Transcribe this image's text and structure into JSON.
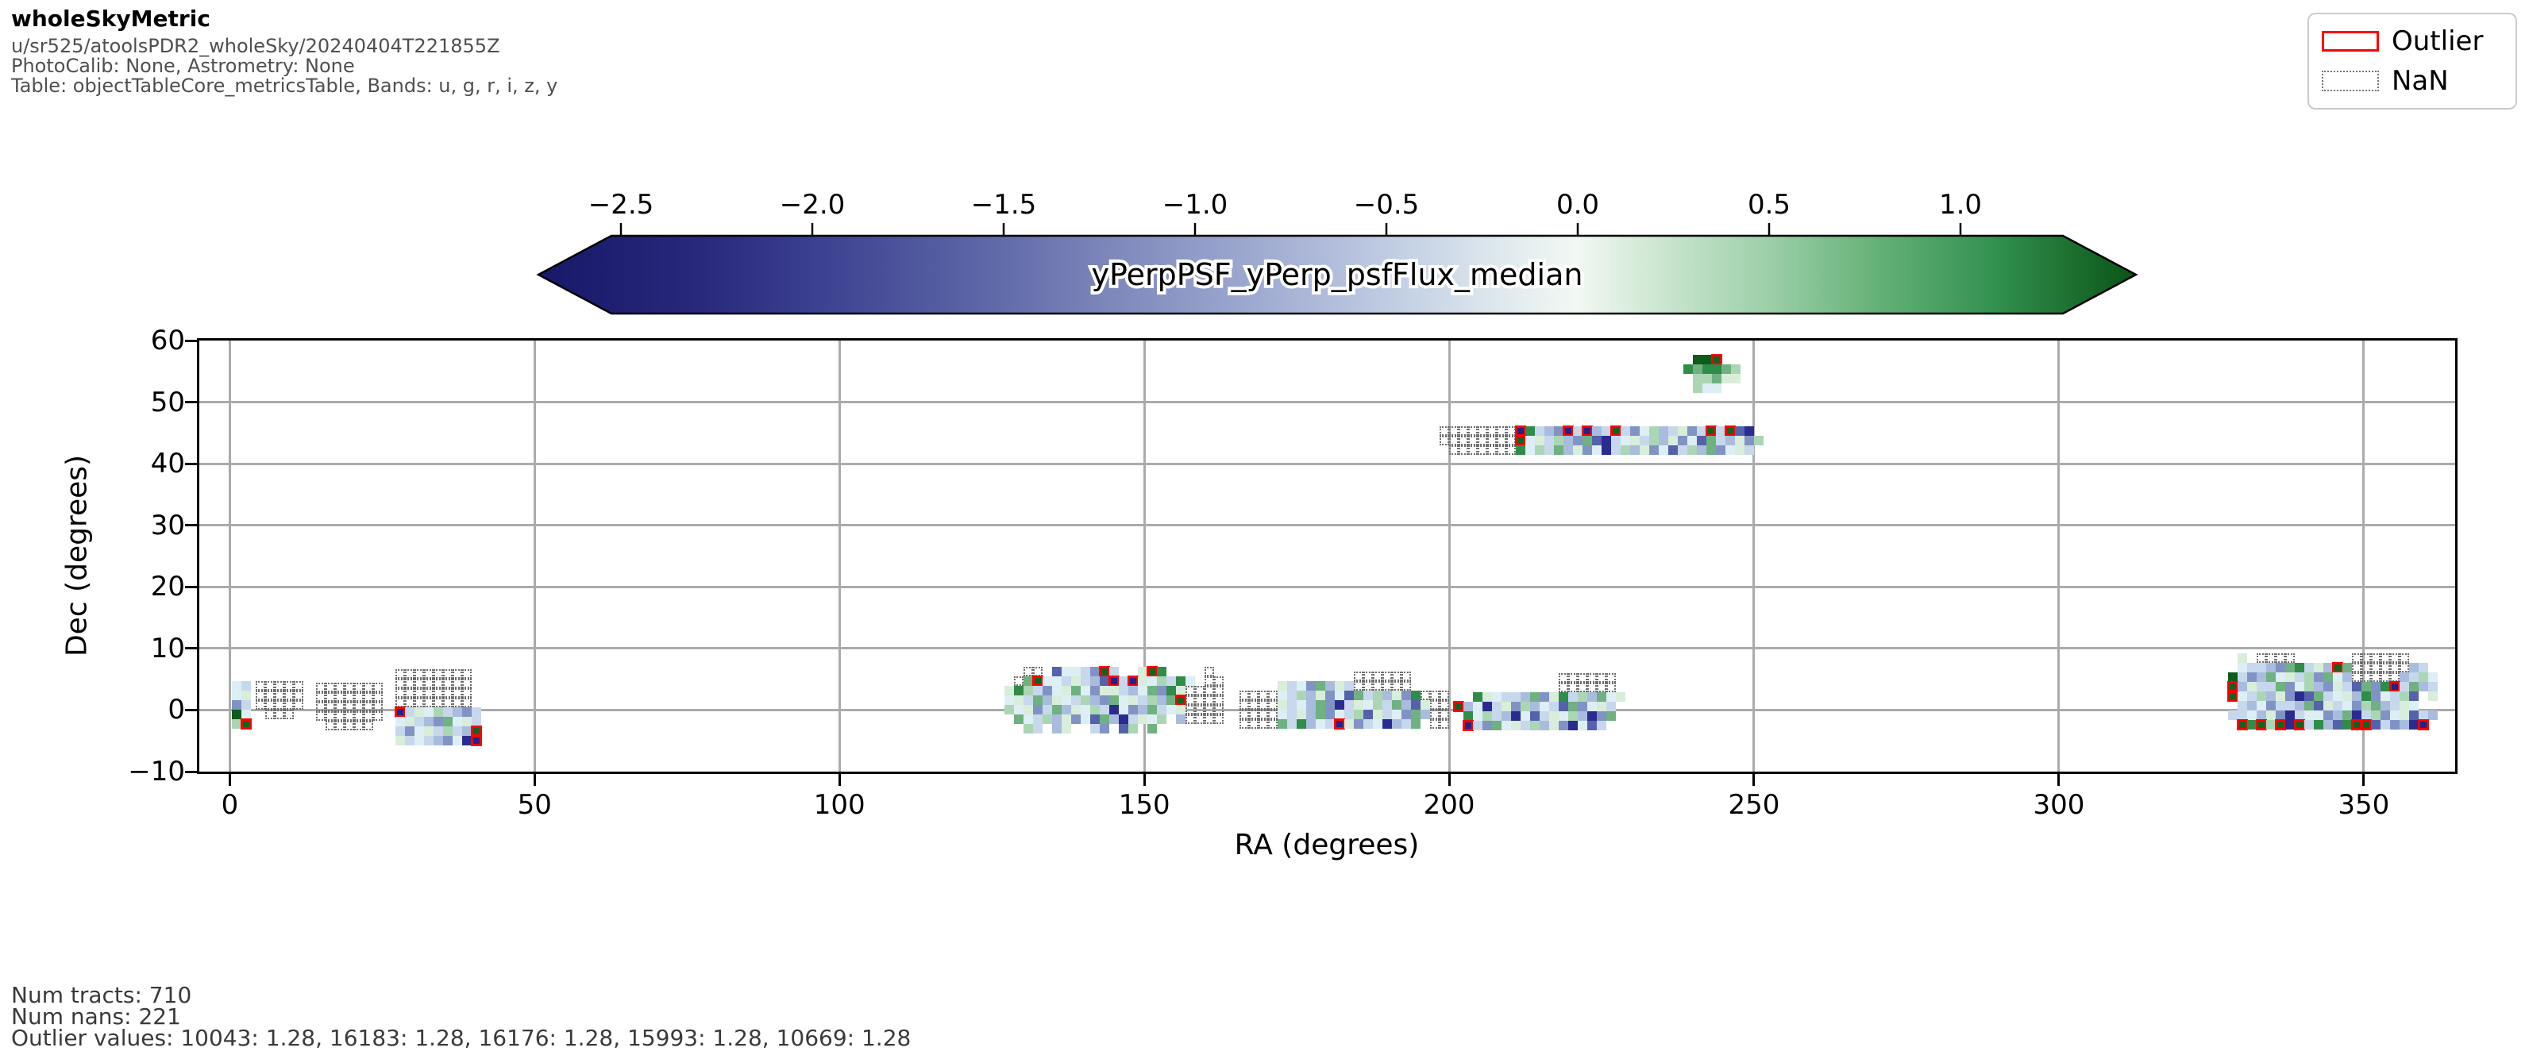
{
  "header": {
    "title": "wholeSkyMetric",
    "subtitle_lines": [
      "u/sr525/atoolsPDR2_wholeSky/20240404T221855Z",
      "PhotoCalib: None, Astrometry: None",
      "Table: objectTableCore_metricsTable, Bands: u, g, r, i, z, y"
    ]
  },
  "legend": {
    "outlier_label": "Outlier",
    "nan_label": "NaN",
    "outlier_color": "#ff0000",
    "nan_border_color": "#767676"
  },
  "colorbar": {
    "label": "yPerpPSF_yPerp_psfFlux_median",
    "ticks": [
      {
        "value": -2.5,
        "label": "−2.5"
      },
      {
        "value": -2.0,
        "label": "−2.0"
      },
      {
        "value": -1.5,
        "label": "−1.5"
      },
      {
        "value": -1.0,
        "label": "−1.0"
      },
      {
        "value": -0.5,
        "label": "−0.5"
      },
      {
        "value": 0.0,
        "label": "0.0"
      },
      {
        "value": 0.5,
        "label": "0.5"
      },
      {
        "value": 1.0,
        "label": "1.0"
      }
    ],
    "domain": [
      -2.716,
      1.459
    ],
    "gradient": [
      {
        "at": 0.0,
        "color": "#181868"
      },
      {
        "at": 0.1,
        "color": "#28287c"
      },
      {
        "at": 0.17,
        "color": "#3a3f8f"
      },
      {
        "at": 0.27,
        "color": "#5a63a5"
      },
      {
        "at": 0.36,
        "color": "#7e88bb"
      },
      {
        "at": 0.46,
        "color": "#a3aed3"
      },
      {
        "at": 0.54,
        "color": "#c3cfe4"
      },
      {
        "at": 0.61,
        "color": "#e2ecef"
      },
      {
        "at": 0.65,
        "color": "#f2f8f3"
      },
      {
        "at": 0.7,
        "color": "#cde7d2"
      },
      {
        "at": 0.77,
        "color": "#9ccfa8"
      },
      {
        "at": 0.84,
        "color": "#63b076"
      },
      {
        "at": 0.91,
        "color": "#339251"
      },
      {
        "at": 1.0,
        "color": "#0a5415"
      }
    ]
  },
  "plot": {
    "xlabel": "RA (degrees)",
    "ylabel": "Dec (degrees)",
    "x_range": [
      -5,
      365
    ],
    "y_range": [
      -10,
      60
    ],
    "grid_color": "#ababab",
    "x_ticks": [
      {
        "value": 0,
        "label": "0"
      },
      {
        "value": 50,
        "label": "50"
      },
      {
        "value": 100,
        "label": "100"
      },
      {
        "value": 150,
        "label": "150"
      },
      {
        "value": 200,
        "label": "200"
      },
      {
        "value": 250,
        "label": "250"
      },
      {
        "value": 300,
        "label": "300"
      },
      {
        "value": 350,
        "label": "350"
      }
    ],
    "y_ticks": [
      {
        "value": 60,
        "label": "60"
      },
      {
        "value": 50,
        "label": "50"
      },
      {
        "value": 40,
        "label": "40"
      },
      {
        "value": 30,
        "label": "30"
      },
      {
        "value": 20,
        "label": "20"
      },
      {
        "value": 10,
        "label": "10"
      },
      {
        "value": 0,
        "label": "0"
      },
      {
        "value": -10,
        "label": "−10"
      }
    ]
  },
  "footer": {
    "lines": [
      "Num tracts: 710",
      "Num nans: 221",
      "Outlier values: 10043: 1.28, 16183: 1.28, 16176: 1.28, 15993: 1.28, 10669: 1.28"
    ]
  },
  "chart_data": {
    "type": "heatmap",
    "title": "wholeSkyMetric",
    "xlabel": "RA (degrees)",
    "ylabel": "Dec (degrees)",
    "x_range": [
      -5,
      365
    ],
    "y_range": [
      -10,
      60
    ],
    "grid": true,
    "colorbar_label": "yPerpPSF_yPerp_psfFlux_median",
    "colorbar_ticks": [
      -2.5,
      -2.0,
      -1.5,
      -1.0,
      -0.5,
      0.0,
      0.5,
      1.0
    ],
    "num_tracts": 710,
    "num_nans": 221,
    "outlier_values": {
      "10043": 1.28,
      "16183": 1.28,
      "16176": 1.28,
      "15993": 1.28,
      "10669": 1.28
    },
    "cell_deg": 1.56,
    "palette": {
      "0": "#ddeef5",
      "1": "#c7d8ec",
      "2": "#aabcde",
      "3": "#8193c5",
      "4": "#5562ab",
      "5": "#2b2b8f",
      "6": "#d8edda",
      "7": "#abd6b4",
      "8": "#6fb180",
      "9": "#2f8c49",
      "A": "#0d5c1d",
      "G": "#0e6420",
      "N": "#22228a"
    },
    "cell_codes": {
      ".": "empty",
      "n": "NaN tract (dotted)",
      "G": "outlier tract (green, red box)",
      "N": "outlier tract (navy, red box)",
      "0-A": "tract colored by metric value, blue(low) to green(high)"
    },
    "clusters": [
      {
        "name": "ra0-field",
        "ra": 0.4,
        "dec_top": 4.7,
        "rows": [
          "01",
          "06",
          "31",
          "A0",
          "7G"
        ]
      },
      {
        "name": "ra5-nan-field",
        "ra": 4.3,
        "dec_top": 4.7,
        "rows": [
          "nnnnn",
          "nnnnn",
          "nnnnn",
          ".nnn."
        ]
      },
      {
        "name": "ra15-nan-field",
        "ra": 14.1,
        "dec_top": 4.5,
        "rows": [
          "nnnnnnn",
          "nnnnnnn",
          "nnnnnnn",
          "nnnnnnn",
          ".nnnnn."
        ]
      },
      {
        "name": "ra30-field",
        "ra": 27.2,
        "dec_top": 6.6,
        "rows": [
          "nnnnnnnn.",
          "nnnnnnnn.",
          "nnnnnnnn.",
          "nnnnnnnn.",
          "N16071231",
          "061238061",
          "13061712G",
          "61012305N"
        ]
      },
      {
        "name": "ra130-band",
        "ra": 127.0,
        "dec_top": 7.0,
        "rows": [
          "..nn.40013G1..6G9....n.",
          ".n8G0016124N1N607190.nn",
          "6971306803661208396nnnn",
          "061826017238061728Gnnnn",
          "7063182607150328106nnnn",
          ".8017263048251607.2nnnn",
          "..71.26..13.47.8......."
        ]
      },
      {
        "name": "ra170-band",
        "ra": 165.6,
        "dec_top": 6.3,
        "rows": [
          "............nnnnnn....",
          "....61038261nnnnnn....",
          "nnnn017263048172639nnn",
          "nnnn6102835160718246nn",
          "nnnn0162830174610382nn",
          "nnnn819201N63105218.nn"
        ]
      },
      {
        "name": "ra210-band",
        "ra": 200.8,
        "dec_top": 6.0,
        "rows": [
          "...........nnnnnn..",
          "...........nnnnnn..",
          "..9601128369172806.",
          "G2051637201483061..",
          ".9071250416072538..",
          ".N13806172635041..."
        ]
      },
      {
        "name": "ra220-dec44-band",
        "ra": 198.4,
        "dec_top": 46.1,
        "rows": [
          "nnnnnnnnN9123N1N21G130721631G1G45.",
          "nnnnnnnnG0617238451061726304812637",
          ".nnnnnnn9071826305172630417283061."
        ]
      },
      {
        "name": "ra243-dec56-clump",
        "ra": 238.4,
        "dec_top": 57.7,
        "rows": [
          ".AAG..",
          "989987",
          ".77866",
          ".700.."
        ]
      },
      {
        "name": "ra345-field",
        "ra": 327.8,
        "dec_top": 9.2,
        "rows": [
          ".6.nnnn......nnnnnn...",
          ".0112389162G8nnnnnn21.",
          "A132806173802nnnnn2170",
          "G2611830723614839N1821",
          "G0172635481062930174.6",
          ".1203112846103782160..",
          "1102635100328517306412",
          ".G9G7G5G19249GG41325N."
        ]
      }
    ]
  }
}
